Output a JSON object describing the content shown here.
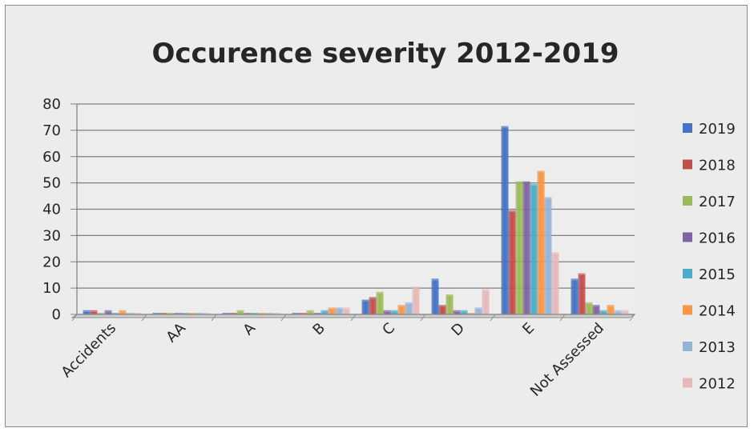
{
  "chart_data": {
    "type": "bar",
    "title": "Occurence severity 2012-2019",
    "xlabel": "",
    "ylabel": "",
    "ylim": [
      0,
      80
    ],
    "yticks": [
      0,
      10,
      20,
      30,
      40,
      50,
      60,
      70,
      80
    ],
    "grid": true,
    "legend_position": "right",
    "categories": [
      "Accidents",
      "AA",
      "A",
      "B",
      "C",
      "D",
      "E",
      "Not Assessed"
    ],
    "series": [
      {
        "name": "2019",
        "color": "#4472c4",
        "values": [
          1,
          0,
          0,
          0,
          5,
          13,
          71,
          13
        ]
      },
      {
        "name": "2018",
        "color": "#c0504d",
        "values": [
          1,
          0,
          0,
          0,
          6,
          3,
          39,
          15
        ]
      },
      {
        "name": "2017",
        "color": "#9bbb59",
        "values": [
          0,
          0,
          1,
          1,
          8,
          7,
          50,
          4
        ]
      },
      {
        "name": "2016",
        "color": "#8064a2",
        "values": [
          1,
          0,
          0,
          0,
          1,
          1,
          50,
          3
        ]
      },
      {
        "name": "2015",
        "color": "#4bacc6",
        "values": [
          0,
          0,
          0,
          1,
          1,
          1,
          49,
          1
        ]
      },
      {
        "name": "2014",
        "color": "#f79646",
        "values": [
          1,
          0,
          0,
          2,
          3,
          0,
          54,
          3
        ]
      },
      {
        "name": "2013",
        "color": "#95b3d7",
        "values": [
          0,
          0,
          0,
          2,
          4,
          2,
          44,
          1
        ]
      },
      {
        "name": "2012",
        "color": "#e6b9b8",
        "values": [
          0,
          0,
          0,
          2,
          10,
          9,
          23,
          1
        ]
      }
    ]
  }
}
